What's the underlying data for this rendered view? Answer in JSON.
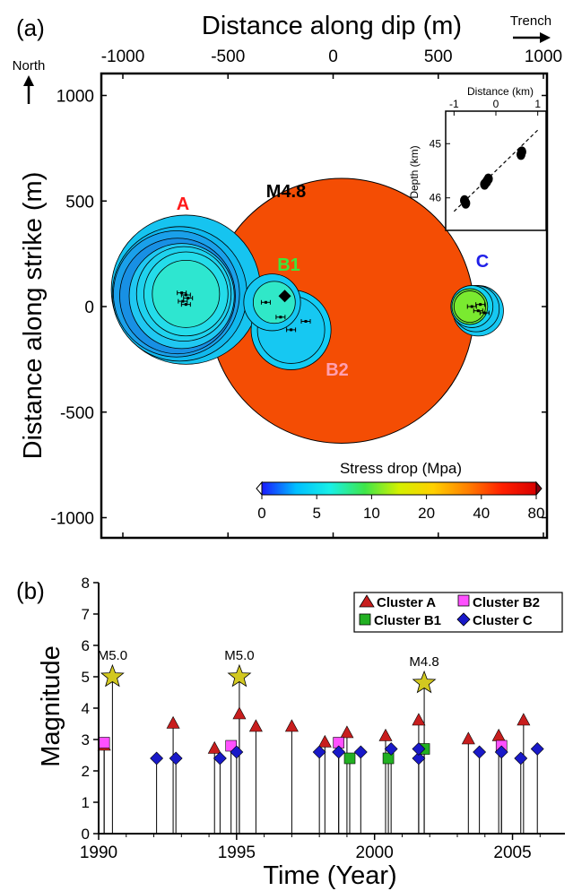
{
  "chart_data": [
    {
      "panel_label": "(a)",
      "type": "scatter",
      "xlabel": "Distance along dip (m)",
      "ylabel": "Distance along strike (m)",
      "xticks": [
        "-1000",
        "-500",
        "0",
        "500",
        "1000"
      ],
      "yticks": [
        "1000",
        "500",
        "0",
        "-500",
        "-1000"
      ],
      "xlim": [
        -1100,
        1000
      ],
      "ylim": [
        -1100,
        1100
      ],
      "annotations": {
        "north": "North",
        "trench": "Trench",
        "cluster_a": "A",
        "cluster_b1": "B1",
        "cluster_b2": "B2",
        "cluster_c": "C",
        "mainshock": "M4.8"
      },
      "colorbar": {
        "title": "Stress drop (Mpa)",
        "ticks": [
          "0",
          "5",
          "10",
          "20",
          "40",
          "80"
        ],
        "colors": [
          "#1a1aff",
          "#00bfff",
          "#19f0e6",
          "#3ee64a",
          "#d4f000",
          "#ffd000",
          "#ff8000",
          "#ff2000",
          "#d80000"
        ]
      },
      "mainshock_rupture": {
        "x": 40,
        "y": -20,
        "radius": 630,
        "color": "#f44d04"
      },
      "ruptures": [
        {
          "cluster": "A",
          "x": -700,
          "y": 80,
          "r": 355,
          "color": "#16c4f0"
        },
        {
          "cluster": "A",
          "x": -730,
          "y": 60,
          "r": 320,
          "color": "#10b8ee"
        },
        {
          "cluster": "A",
          "x": -745,
          "y": 60,
          "r": 300,
          "color": "#1aa0ea"
        },
        {
          "cluster": "A",
          "x": -740,
          "y": 50,
          "r": 275,
          "color": "#1890e4"
        },
        {
          "cluster": "A",
          "x": -720,
          "y": 50,
          "r": 250,
          "color": "#20c8f2"
        },
        {
          "cluster": "A",
          "x": -710,
          "y": 60,
          "r": 225,
          "color": "#1fd2ee"
        },
        {
          "cluster": "A",
          "x": -700,
          "y": 60,
          "r": 200,
          "color": "#24dcea"
        },
        {
          "cluster": "A",
          "x": -700,
          "y": 60,
          "r": 160,
          "color": "#2ee6d0"
        },
        {
          "cluster": "B2",
          "x": -200,
          "y": -110,
          "r": 190,
          "color": "#12ccf4"
        },
        {
          "cluster": "B2",
          "x": -200,
          "y": -110,
          "r": 160,
          "color": "#16c8f2"
        },
        {
          "cluster": "B1",
          "x": -290,
          "y": 20,
          "r": 135,
          "color": "#16c8f2"
        },
        {
          "cluster": "B1",
          "x": -280,
          "y": 20,
          "r": 100,
          "color": "#30e8c8"
        },
        {
          "cluster": "C",
          "x": 690,
          "y": -20,
          "r": 120,
          "color": "#16c8f2"
        },
        {
          "cluster": "C",
          "x": 680,
          "y": -10,
          "r": 110,
          "color": "#16c8f2"
        },
        {
          "cluster": "C",
          "x": 660,
          "y": 0,
          "r": 100,
          "color": "#14d2f0"
        },
        {
          "cluster": "C",
          "x": 650,
          "y": 0,
          "r": 85,
          "color": "#60e840"
        },
        {
          "cluster": "C",
          "x": 650,
          "y": 0,
          "r": 75,
          "color": "#7aea30"
        }
      ],
      "hypocenters": [
        {
          "x": -720,
          "y": 65
        },
        {
          "x": -700,
          "y": 55
        },
        {
          "x": -690,
          "y": 40
        },
        {
          "x": -715,
          "y": 25
        },
        {
          "x": -700,
          "y": 10
        },
        {
          "x": -320,
          "y": 20
        },
        {
          "x": -250,
          "y": -50
        },
        {
          "x": -200,
          "y": -110
        },
        {
          "x": -130,
          "y": -70
        },
        {
          "x": 660,
          "y": 0
        },
        {
          "x": 690,
          "y": -20
        },
        {
          "x": 700,
          "y": 10
        },
        {
          "x": 720,
          "y": -30
        }
      ],
      "mainshock_epicenter": {
        "x": -230,
        "y": 50
      },
      "inset": {
        "xlabel": "Distance (km)",
        "ylabel": "Depth (km)",
        "xticks": [
          "-1",
          "0",
          "1"
        ],
        "yticks": [
          "45",
          "46"
        ],
        "xlim": [
          -1.2,
          1.2
        ],
        "ylim": [
          46.6,
          44.4
        ],
        "points": [
          {
            "x": -0.75,
            "y": 46.05
          },
          {
            "x": -0.72,
            "y": 46.1
          },
          {
            "x": -0.27,
            "y": 45.75
          },
          {
            "x": -0.22,
            "y": 45.7
          },
          {
            "x": -0.18,
            "y": 45.65
          },
          {
            "x": 0.6,
            "y": 45.2
          },
          {
            "x": 0.62,
            "y": 45.15
          }
        ],
        "fit_line": [
          [
            -1.0,
            46.25
          ],
          [
            1.0,
            44.75
          ]
        ]
      }
    },
    {
      "panel_label": "(b)",
      "type": "scatter",
      "xlabel": "Time (Year)",
      "ylabel": "Magnitude",
      "xticks": [
        "1990",
        "1995",
        "2000",
        "2005"
      ],
      "yticks": [
        "0",
        "1",
        "2",
        "3",
        "4",
        "5",
        "6",
        "7",
        "8"
      ],
      "xlim": [
        1990,
        2006.9
      ],
      "ylim": [
        0,
        8
      ],
      "legend_position": "top-right",
      "series": [
        {
          "name": "Cluster A",
          "marker": "triangle",
          "color": "#c81e1e",
          "points": [
            [
              1990.2,
              2.8
            ],
            [
              1992.7,
              3.5
            ],
            [
              1994.2,
              2.7
            ],
            [
              1995.1,
              3.8
            ],
            [
              1995.7,
              3.4
            ],
            [
              1997.0,
              3.4
            ],
            [
              1998.2,
              2.9
            ],
            [
              1999.0,
              3.2
            ],
            [
              2000.4,
              3.1
            ],
            [
              2001.6,
              3.6
            ],
            [
              2003.4,
              3.0
            ],
            [
              2004.5,
              3.1
            ],
            [
              2005.4,
              3.6
            ]
          ]
        },
        {
          "name": "Cluster B2",
          "marker": "square",
          "color": "#ff50ff",
          "points": [
            [
              1990.2,
              2.9
            ],
            [
              1994.8,
              2.8
            ],
            [
              1998.7,
              2.9
            ],
            [
              2004.6,
              2.8
            ]
          ]
        },
        {
          "name": "Cluster B1",
          "marker": "square",
          "color": "#22b022",
          "points": [
            [
              1999.1,
              2.4
            ],
            [
              2000.5,
              2.4
            ],
            [
              2001.8,
              2.7
            ]
          ]
        },
        {
          "name": "Cluster C",
          "marker": "diamond",
          "color": "#1919c8",
          "points": [
            [
              1992.1,
              2.4
            ],
            [
              1992.8,
              2.4
            ],
            [
              1994.4,
              2.4
            ],
            [
              1995.0,
              2.6
            ],
            [
              1998.0,
              2.6
            ],
            [
              1998.7,
              2.6
            ],
            [
              1999.5,
              2.6
            ],
            [
              2000.6,
              2.7
            ],
            [
              2001.6,
              2.4
            ],
            [
              2001.6,
              2.7
            ],
            [
              2003.8,
              2.6
            ],
            [
              2004.6,
              2.6
            ],
            [
              2005.3,
              2.4
            ],
            [
              2005.9,
              2.7
            ]
          ]
        }
      ],
      "large_events": [
        {
          "label": "M5.0",
          "year": 1990.5,
          "mag": 5.0
        },
        {
          "label": "M5.0",
          "year": 1995.1,
          "mag": 5.0
        },
        {
          "label": "M4.8",
          "year": 2001.8,
          "mag": 4.8
        }
      ],
      "star_color": "#d2c820"
    }
  ]
}
